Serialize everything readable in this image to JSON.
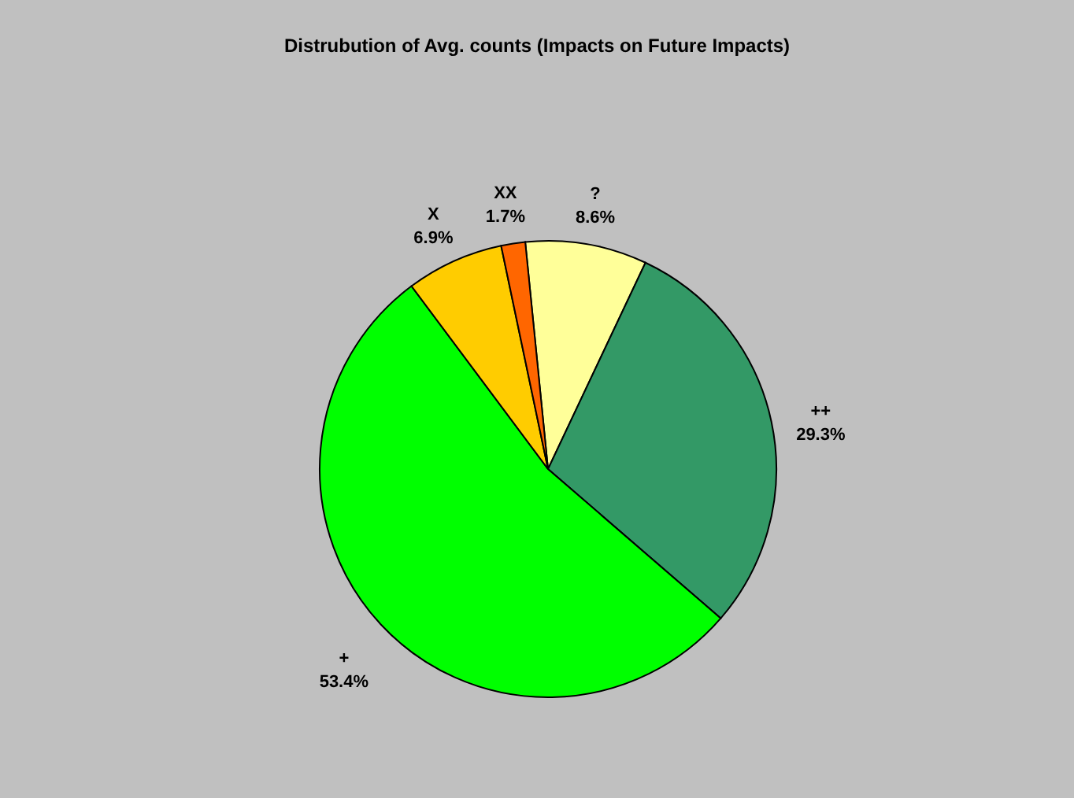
{
  "chart_data": {
    "type": "pie",
    "title": "Distrubution of Avg. counts (Impacts on Future Impacts)",
    "categories": [
      "?",
      "++",
      "+",
      "X",
      "XX"
    ],
    "values": [
      8.6,
      29.3,
      53.4,
      6.9,
      1.7
    ],
    "value_labels": [
      "8.6%",
      "29.3%",
      "53.4%",
      "6.9%",
      "1.7%"
    ],
    "colors": [
      "#ffff99",
      "#339966",
      "#00ff00",
      "#ffcc00",
      "#ff6600"
    ],
    "legend": false
  }
}
